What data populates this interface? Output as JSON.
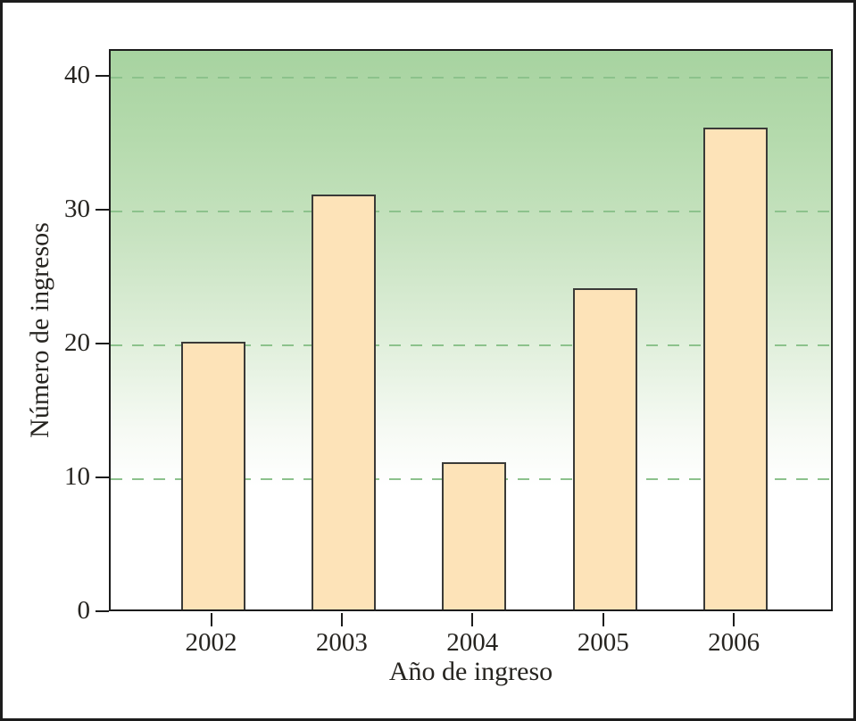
{
  "chart_data": {
    "type": "bar",
    "title": "",
    "categories": [
      "2002",
      "2003",
      "2004",
      "2005",
      "2006"
    ],
    "values": [
      20,
      31,
      11,
      24,
      36
    ],
    "xlabel": "Año de ingreso",
    "ylabel": "Número de ingresos",
    "yticks": [
      0,
      10,
      20,
      30,
      40
    ],
    "ylim": [
      0,
      42
    ],
    "grid": "horizontal dashed lines at y = 10, 20, 30, 40",
    "legend": "none",
    "plot_background": "vertical gradient, green at top fading to white near y=10"
  },
  "colors": {
    "bar_fill": "#fde3b8",
    "bar_border": "#3a3a38",
    "gradient_top_green": "#a7d3a0",
    "gradient_bottom": "#ffffff",
    "gridline_green": "#8cc28c",
    "axis_and_frame": "#1c1c1c",
    "text": "#262420"
  }
}
